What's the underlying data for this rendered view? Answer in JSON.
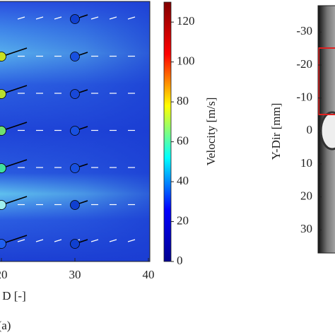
{
  "chart_data": [
    {
      "type": "quiver",
      "panel_label": "(a)",
      "xlabel": "D [-]",
      "xlim": [
        20,
        40
      ],
      "xticks": [
        20,
        30,
        40
      ],
      "colorbar": {
        "label": "Velocity [m/s]",
        "lim": [
          0,
          130
        ],
        "ticks": [
          0,
          20,
          40,
          60,
          80,
          100,
          120
        ],
        "colors": [
          "#00008f",
          "#0000ff",
          "#00ffff",
          "#ffff00",
          "#ff0000",
          "#800000"
        ]
      }
    },
    {
      "type": "image",
      "ylabel": "Y-Dir [mm]",
      "ylim": [
        -38,
        37
      ],
      "yticks": [
        -30,
        -20,
        -10,
        0,
        10,
        20,
        30
      ]
    }
  ]
}
